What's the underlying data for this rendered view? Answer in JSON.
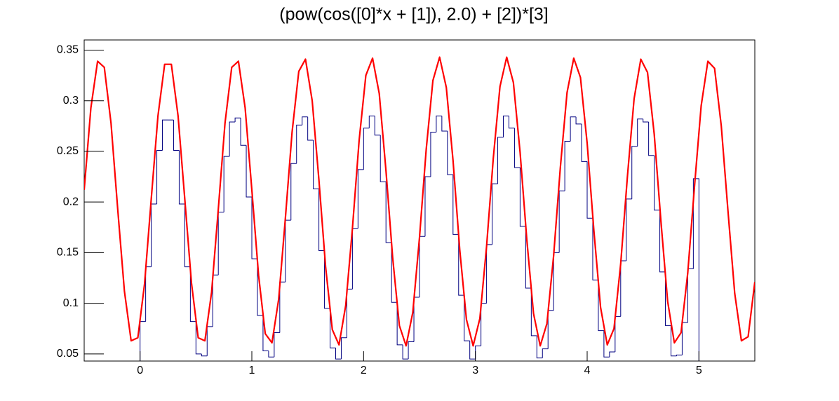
{
  "chart_data": {
    "type": "histogram",
    "title": "(pow(cos([0]*x + [1]), 2.0) + [2])*[3]",
    "xlim": [
      -0.5,
      5.5
    ],
    "ylim": [
      0.043,
      0.36
    ],
    "xticks": [
      0,
      1,
      2,
      3,
      4,
      5
    ],
    "yticks": [
      0.05,
      0.1,
      0.15,
      0.2,
      0.25,
      0.3,
      0.35
    ],
    "series": [
      {
        "type": "histogram",
        "color": "#000080",
        "bins": [
          0,
          0.05,
          0.1,
          0.15,
          0.2,
          0.25,
          0.3,
          0.35,
          0.4,
          0.45,
          0.5,
          0.55,
          0.6,
          0.65,
          0.7,
          0.75,
          0.8,
          0.85,
          0.9,
          0.95,
          1,
          1.05,
          1.1,
          1.15,
          1.2,
          1.25,
          1.3,
          1.35,
          1.4,
          1.45,
          1.5,
          1.55,
          1.6,
          1.65,
          1.7,
          1.75,
          1.8,
          1.85,
          1.9,
          1.95,
          2,
          2.05,
          2.1,
          2.15,
          2.2,
          2.25,
          2.3,
          2.35,
          2.4,
          2.45,
          2.5,
          2.55,
          2.6,
          2.65,
          2.7,
          2.75,
          2.8,
          2.85,
          2.9,
          2.95,
          3,
          3.05,
          3.1,
          3.15,
          3.2,
          3.25,
          3.3,
          3.35,
          3.4,
          3.45,
          3.5,
          3.55,
          3.6,
          3.65,
          3.7,
          3.75,
          3.8,
          3.85,
          3.9,
          3.95,
          4,
          4.05,
          4.1,
          4.15,
          4.2,
          4.25,
          4.3,
          4.35,
          4.4,
          4.45,
          4.5,
          4.55,
          4.6,
          4.65,
          4.7,
          4.75,
          4.8,
          4.85,
          4.9,
          4.95,
          5
        ],
        "values": [
          0.082,
          0.136,
          0.198,
          0.251,
          0.281,
          0.281,
          0.251,
          0.198,
          0.136,
          0.082,
          0.05,
          0.048,
          0.077,
          0.128,
          0.19,
          0.245,
          0.279,
          0.283,
          0.256,
          0.205,
          0.144,
          0.088,
          0.053,
          0.047,
          0.071,
          0.121,
          0.182,
          0.238,
          0.276,
          0.284,
          0.261,
          0.213,
          0.152,
          0.095,
          0.056,
          0.045,
          0.066,
          0.114,
          0.174,
          0.232,
          0.273,
          0.285,
          0.266,
          0.22,
          0.16,
          0.101,
          0.059,
          0.045,
          0.062,
          0.106,
          0.166,
          0.225,
          0.269,
          0.285,
          0.27,
          0.227,
          0.168,
          0.108,
          0.063,
          0.045,
          0.058,
          0.1,
          0.158,
          0.218,
          0.264,
          0.285,
          0.273,
          0.234,
          0.176,
          0.115,
          0.068,
          0.046,
          0.055,
          0.093,
          0.15,
          0.211,
          0.26,
          0.284,
          0.277,
          0.24,
          0.184,
          0.123,
          0.073,
          0.047,
          0.052,
          0.087,
          0.142,
          0.203,
          0.255,
          0.282,
          0.279,
          0.246,
          0.192,
          0.131,
          0.078,
          0.048,
          0.049,
          0.081,
          0.134,
          0.223
        ]
      },
      {
        "type": "line",
        "color": "#ff0000",
        "x": [
          -0.5,
          -0.44,
          -0.38,
          -0.32,
          -0.26,
          -0.2,
          -0.14,
          -0.08,
          -0.02,
          0.04,
          0.1,
          0.16,
          0.22,
          0.28,
          0.34,
          0.4,
          0.46,
          0.52,
          0.58,
          0.64,
          0.7,
          0.76,
          0.82,
          0.88,
          0.94,
          1,
          1.06,
          1.12,
          1.18,
          1.24,
          1.3,
          1.36,
          1.42,
          1.48,
          1.54,
          1.6,
          1.66,
          1.72,
          1.78,
          1.84,
          1.9,
          1.96,
          2.02,
          2.08,
          2.14,
          2.2,
          2.26,
          2.32,
          2.38,
          2.44,
          2.5,
          2.56,
          2.62,
          2.68,
          2.74,
          2.8,
          2.86,
          2.92,
          2.98,
          3.04,
          3.1,
          3.16,
          3.22,
          3.28,
          3.34,
          3.4,
          3.46,
          3.52,
          3.58,
          3.64,
          3.7,
          3.76,
          3.82,
          3.88,
          3.94,
          4,
          4.06,
          4.12,
          4.18,
          4.24,
          4.3,
          4.36,
          4.42,
          4.48,
          4.54,
          4.6,
          4.66,
          4.72,
          4.78,
          4.84,
          4.9,
          4.96,
          5.02,
          5.08,
          5.14,
          5.2,
          5.26,
          5.32,
          5.38,
          5.44,
          5.5
        ],
        "values": [
          0.212,
          0.293,
          0.339,
          0.333,
          0.278,
          0.193,
          0.112,
          0.063,
          0.066,
          0.119,
          0.203,
          0.285,
          0.336,
          0.336,
          0.285,
          0.203,
          0.12,
          0.066,
          0.063,
          0.111,
          0.193,
          0.278,
          0.333,
          0.339,
          0.293,
          0.212,
          0.128,
          0.07,
          0.061,
          0.104,
          0.184,
          0.269,
          0.329,
          0.341,
          0.3,
          0.222,
          0.136,
          0.074,
          0.059,
          0.098,
          0.174,
          0.261,
          0.325,
          0.342,
          0.307,
          0.231,
          0.145,
          0.078,
          0.058,
          0.091,
          0.165,
          0.252,
          0.32,
          0.343,
          0.313,
          0.241,
          0.153,
          0.084,
          0.058,
          0.085,
          0.156,
          0.243,
          0.314,
          0.343,
          0.318,
          0.249,
          0.163,
          0.09,
          0.058,
          0.08,
          0.147,
          0.234,
          0.308,
          0.342,
          0.323,
          0.258,
          0.172,
          0.096,
          0.059,
          0.075,
          0.139,
          0.225,
          0.302,
          0.341,
          0.328,
          0.267,
          0.181,
          0.102,
          0.061,
          0.071,
          0.13,
          0.215,
          0.295,
          0.339,
          0.332,
          0.275,
          0.191,
          0.11,
          0.063,
          0.067,
          0.121
        ]
      }
    ]
  }
}
